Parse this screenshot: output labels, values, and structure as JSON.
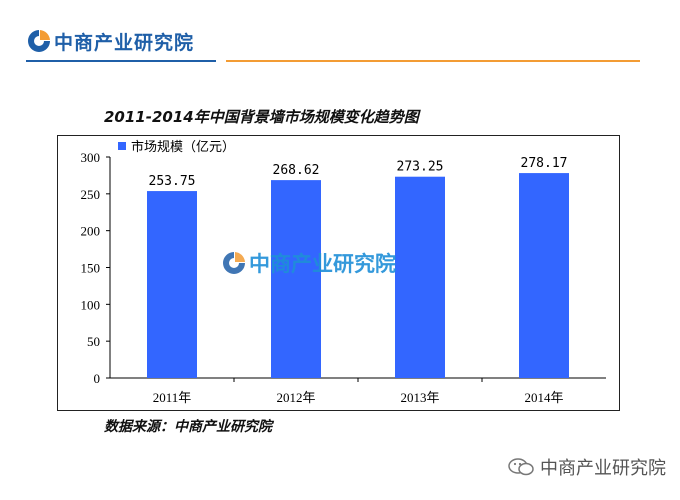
{
  "header": {
    "brand": "中商产业研究院"
  },
  "footer": {
    "brand": "中商产业研究院"
  },
  "source": "数据来源：中商产业研究院",
  "watermark": "中商产业研究院",
  "colors": {
    "bar": "#3366ff",
    "brand_blue": "#1f5fa8",
    "brand_orange": "#f39c34"
  },
  "chart_data": {
    "type": "bar",
    "title": "2011-2014年中国背景墙市场规模变化趋势图",
    "categories": [
      "2011年",
      "2012年",
      "2013年",
      "2014年"
    ],
    "series": [
      {
        "name": "市场规模（亿元）",
        "values": [
          253.75,
          268.62,
          273.25,
          278.17
        ]
      }
    ],
    "data_labels": [
      "253.75",
      "268.62",
      "273.25",
      "278.17"
    ],
    "ylim": [
      0,
      300
    ],
    "yticks": [
      0,
      50,
      100,
      150,
      200,
      250,
      300
    ],
    "legend_position": "top-left",
    "grid": false
  }
}
